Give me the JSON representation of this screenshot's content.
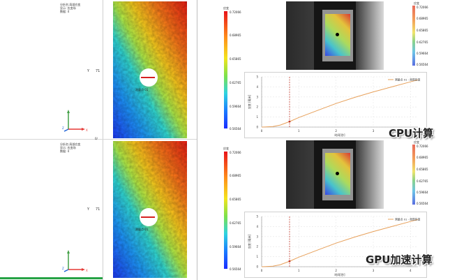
{
  "panels": [
    {
      "id": "top",
      "info_lines": [
        "分析名:局部应变",
        "显示: 应变场",
        "数据: 4"
      ],
      "axis_y_label": "Y",
      "axis_y_value": "71",
      "colorbar": {
        "unit": "应变",
        "ticks": [
          "0.72066",
          "0.68965",
          "0.65865",
          "0.62765",
          "0.59664",
          "0.56564"
        ]
      },
      "camera_colorbar": {
        "unit": "应变",
        "ticks": [
          "0.72066",
          "0.68965",
          "0.65865",
          "0.62765",
          "0.59664",
          "0.56564"
        ]
      },
      "probe_label": "测量点 01",
      "chart": {
        "legend": "测量点 01 - 局部应变",
        "xlabel": "时间[秒]",
        "ylabel": "应变 [毫米]",
        "method_label": "CPU计算"
      }
    },
    {
      "id": "bottom",
      "info_lines": [
        "分析名:局部应变",
        "显示: 应变场",
        "数据: 4"
      ],
      "axis_y_label": "Y",
      "axis_y_value": "71",
      "colorbar": {
        "unit": "应变",
        "ticks": [
          "0.72066",
          "0.68965",
          "0.65865",
          "0.62765",
          "0.59664",
          "0.56564"
        ]
      },
      "camera_colorbar": {
        "unit": "应变",
        "ticks": [
          "0.72066",
          "0.68965",
          "0.65865",
          "0.62765",
          "0.59664",
          "0.56564"
        ]
      },
      "probe_label": "测量点 01",
      "chart": {
        "legend": "测量点 01 - 局部应变",
        "xlabel": "时间[秒]",
        "ylabel": "应变 [毫米]",
        "method_label": "GPU加速计算"
      }
    }
  ],
  "chart_data": [
    {
      "type": "line",
      "title": "",
      "xlabel": "时间[秒]",
      "ylabel": "应变 [毫米]",
      "xlim": [
        0,
        4.2
      ],
      "ylim": [
        0,
        5
      ],
      "x_ticks": [
        "0",
        "1",
        "2",
        "3",
        "4"
      ],
      "y_ticks": [
        "0",
        "1",
        "2",
        "3",
        "4",
        "5"
      ],
      "marker_x": 0.75,
      "series": [
        {
          "name": "测量点 01 - 局部应变",
          "x": [
            0,
            0.3,
            0.5,
            0.75,
            1.0,
            1.5,
            2.0,
            2.5,
            3.0,
            3.5,
            4.0,
            4.2
          ],
          "y": [
            0.0,
            0.05,
            0.2,
            0.55,
            0.95,
            1.65,
            2.35,
            2.95,
            3.5,
            4.0,
            4.5,
            4.7
          ]
        }
      ]
    },
    {
      "type": "line",
      "title": "",
      "xlabel": "时间[秒]",
      "ylabel": "应变 [毫米]",
      "xlim": [
        0,
        4.2
      ],
      "ylim": [
        0,
        5
      ],
      "x_ticks": [
        "0",
        "1",
        "2",
        "3",
        "4"
      ],
      "y_ticks": [
        "0",
        "1",
        "2",
        "3",
        "4",
        "5"
      ],
      "marker_x": 0.75,
      "series": [
        {
          "name": "测量点 01 - 局部应变",
          "x": [
            0,
            0.3,
            0.5,
            0.75,
            1.0,
            1.5,
            2.0,
            2.5,
            3.0,
            3.5,
            4.0,
            4.2
          ],
          "y": [
            0.0,
            0.05,
            0.2,
            0.55,
            0.95,
            1.65,
            2.35,
            2.95,
            3.5,
            4.0,
            4.5,
            4.7
          ]
        }
      ]
    }
  ],
  "colors": {
    "curve": "#e7a05a",
    "marker_line": "#c0392b",
    "probe_arrow": "#d62020",
    "axis_x": "#e53935",
    "axis_y": "#43a047",
    "axis_z": "#1e63d6",
    "green_bar": "#25a244"
  }
}
